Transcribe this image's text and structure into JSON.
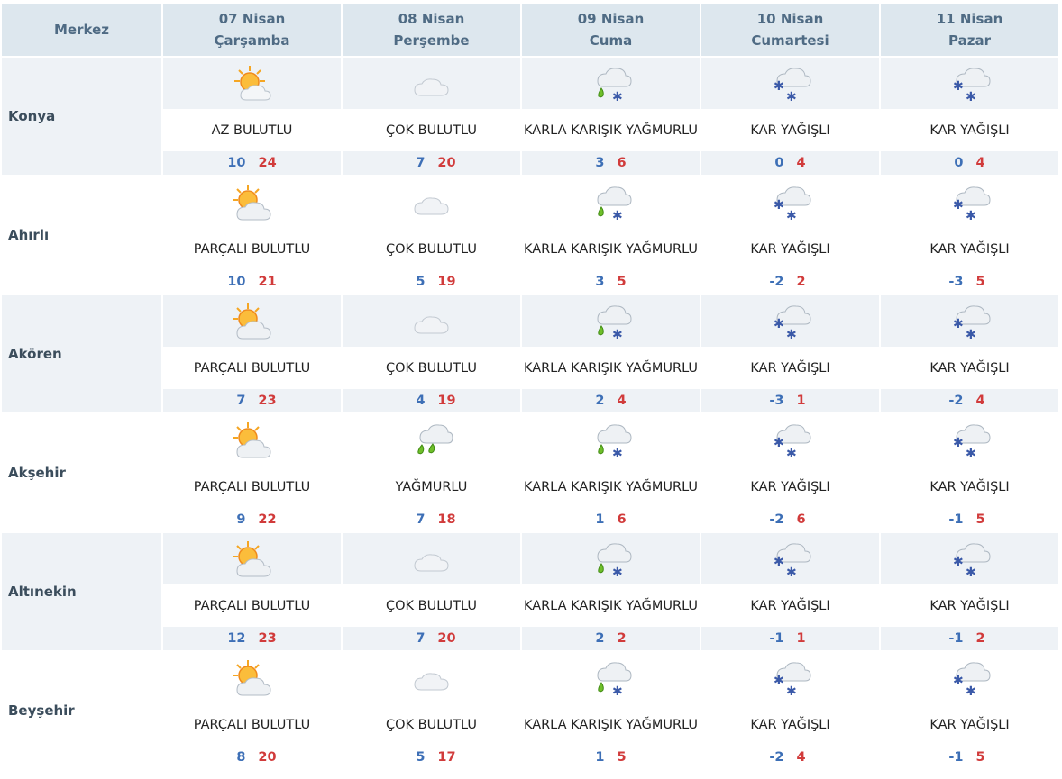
{
  "header": {
    "merkez": "Merkez",
    "days": [
      {
        "date": "07 Nisan",
        "name": "Çarşamba"
      },
      {
        "date": "08 Nisan",
        "name": "Perşembe"
      },
      {
        "date": "09 Nisan",
        "name": "Cuma"
      },
      {
        "date": "10 Nisan",
        "name": "Cumartesi"
      },
      {
        "date": "11 Nisan",
        "name": "Pazar"
      }
    ]
  },
  "cities": [
    {
      "name": "Konya",
      "days": [
        {
          "icon": "sun-cloud-icon",
          "cond": "AZ BULUTLU",
          "min": "10",
          "max": "24"
        },
        {
          "icon": "cloud-icon",
          "cond": "ÇOK BULUTLU",
          "min": "7",
          "max": "20"
        },
        {
          "icon": "sleet-icon",
          "cond": "KARLA KARIŞIK YAĞMURLU",
          "min": "3",
          "max": "6"
        },
        {
          "icon": "snow-icon",
          "cond": "KAR YAĞIŞLI",
          "min": "0",
          "max": "4"
        },
        {
          "icon": "snow-icon",
          "cond": "KAR YAĞIŞLI",
          "min": "0",
          "max": "4"
        }
      ]
    },
    {
      "name": "Ahırlı",
      "days": [
        {
          "icon": "partly-cloudy-icon",
          "cond": "PARÇALI BULUTLU",
          "min": "10",
          "max": "21"
        },
        {
          "icon": "cloud-icon",
          "cond": "ÇOK BULUTLU",
          "min": "5",
          "max": "19"
        },
        {
          "icon": "sleet-icon",
          "cond": "KARLA KARIŞIK YAĞMURLU",
          "min": "3",
          "max": "5"
        },
        {
          "icon": "snow-icon",
          "cond": "KAR YAĞIŞLI",
          "min": "-2",
          "max": "2"
        },
        {
          "icon": "snow-icon",
          "cond": "KAR YAĞIŞLI",
          "min": "-3",
          "max": "5"
        }
      ]
    },
    {
      "name": "Akören",
      "days": [
        {
          "icon": "partly-cloudy-icon",
          "cond": "PARÇALI BULUTLU",
          "min": "7",
          "max": "23"
        },
        {
          "icon": "cloud-icon",
          "cond": "ÇOK BULUTLU",
          "min": "4",
          "max": "19"
        },
        {
          "icon": "sleet-icon",
          "cond": "KARLA KARIŞIK YAĞMURLU",
          "min": "2",
          "max": "4"
        },
        {
          "icon": "snow-icon",
          "cond": "KAR YAĞIŞLI",
          "min": "-3",
          "max": "1"
        },
        {
          "icon": "snow-icon",
          "cond": "KAR YAĞIŞLI",
          "min": "-2",
          "max": "4"
        }
      ]
    },
    {
      "name": "Akşehir",
      "days": [
        {
          "icon": "partly-cloudy-icon",
          "cond": "PARÇALI BULUTLU",
          "min": "9",
          "max": "22"
        },
        {
          "icon": "rain-icon",
          "cond": "YAĞMURLU",
          "min": "7",
          "max": "18"
        },
        {
          "icon": "sleet-icon",
          "cond": "KARLA KARIŞIK YAĞMURLU",
          "min": "1",
          "max": "6"
        },
        {
          "icon": "snow-icon",
          "cond": "KAR YAĞIŞLI",
          "min": "-2",
          "max": "6"
        },
        {
          "icon": "snow-icon",
          "cond": "KAR YAĞIŞLI",
          "min": "-1",
          "max": "5"
        }
      ]
    },
    {
      "name": "Altınekin",
      "days": [
        {
          "icon": "partly-cloudy-icon",
          "cond": "PARÇALI BULUTLU",
          "min": "12",
          "max": "23"
        },
        {
          "icon": "cloud-icon",
          "cond": "ÇOK BULUTLU",
          "min": "7",
          "max": "20"
        },
        {
          "icon": "sleet-icon",
          "cond": "KARLA KARIŞIK YAĞMURLU",
          "min": "2",
          "max": "2"
        },
        {
          "icon": "snow-icon",
          "cond": "KAR YAĞIŞLI",
          "min": "-1",
          "max": "1"
        },
        {
          "icon": "snow-icon",
          "cond": "KAR YAĞIŞLI",
          "min": "-1",
          "max": "2"
        }
      ]
    },
    {
      "name": "Beyşehir",
      "days": [
        {
          "icon": "partly-cloudy-icon",
          "cond": "PARÇALI BULUTLU",
          "min": "8",
          "max": "20"
        },
        {
          "icon": "cloud-icon",
          "cond": "ÇOK BULUTLU",
          "min": "5",
          "max": "17"
        },
        {
          "icon": "sleet-icon",
          "cond": "KARLA KARIŞIK YAĞMURLU",
          "min": "1",
          "max": "5"
        },
        {
          "icon": "snow-icon",
          "cond": "KAR YAĞIŞLI",
          "min": "-2",
          "max": "4"
        },
        {
          "icon": "snow-icon",
          "cond": "KAR YAĞIŞLI",
          "min": "-1",
          "max": "5"
        }
      ]
    }
  ],
  "colors": {
    "header_bg": "#dde7ee",
    "min_temp": "#3d6fb6",
    "max_temp": "#d13b3b"
  }
}
